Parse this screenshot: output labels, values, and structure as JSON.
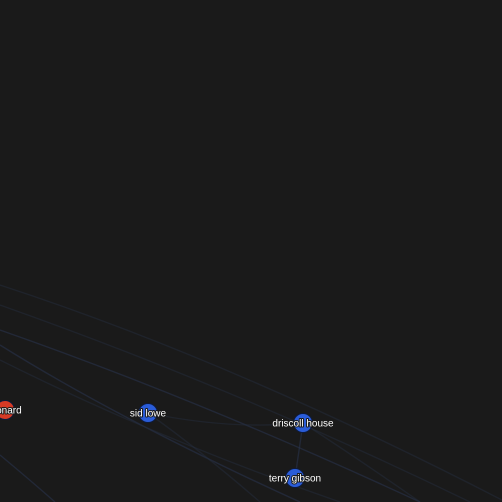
{
  "graph": {
    "background": "#1a1a1a",
    "edge_color": "#2a3550",
    "nodes": [
      {
        "id": "leonard",
        "label": "leonard",
        "color": "#d63a25"
      },
      {
        "id": "sid-lowe",
        "label": "sid lowe",
        "color": "#2a5cd8"
      },
      {
        "id": "driscoll-house",
        "label": "driscoll house",
        "color": "#2a5cd8"
      },
      {
        "id": "terry-gibson",
        "label": "terry gibson",
        "color": "#2a5cd8"
      }
    ]
  }
}
